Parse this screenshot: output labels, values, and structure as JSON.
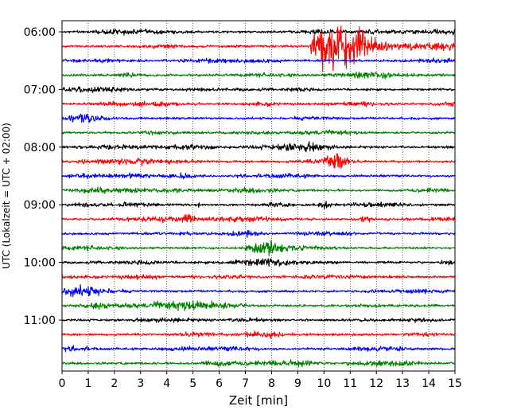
{
  "chart_data": {
    "type": "line",
    "subtype": "helicorder-seismogram",
    "title": "",
    "xlabel": "Zeit  [min]",
    "ylabel": "UTC (Lokalzeit = UTC + 02:00)",
    "xlim": [
      0,
      15
    ],
    "x_ticks": [
      0,
      1,
      2,
      3,
      4,
      5,
      6,
      7,
      8,
      9,
      10,
      11,
      12,
      13,
      14,
      15
    ],
    "y_tick_labels": [
      "06:00",
      "07:00",
      "08:00",
      "09:00",
      "10:00",
      "11:00"
    ],
    "trace_start_hour": "06:00",
    "trace_interval_min": 15,
    "trace_count": 24,
    "trace_colors": [
      "#000000",
      "#ff0000",
      "#0000ff",
      "#008000"
    ],
    "grid": {
      "x": "dotted-vertical",
      "y": false
    },
    "legend": "none",
    "events": [
      {
        "trace_start": "06:15",
        "x_start_min": 9.5,
        "x_end_min": 13.5,
        "amplitude": "large",
        "note": "clipped, peak near 10–11 min"
      },
      {
        "trace_start": "08:15",
        "x_start_min": 10.0,
        "x_end_min": 11.0,
        "amplitude": "medium"
      },
      {
        "trace_start": "09:00",
        "x_start_min": 5.2,
        "x_end_min": 5.3,
        "amplitude": "small"
      },
      {
        "trace_start": "09:00",
        "x_start_min": 9.8,
        "x_end_min": 10.3,
        "amplitude": "small"
      },
      {
        "trace_start": "09:15",
        "x_start_min": 4.5,
        "x_end_min": 5.2,
        "amplitude": "small"
      },
      {
        "trace_start": "09:45",
        "x_start_min": 7.0,
        "x_end_min": 9.0,
        "amplitude": "small"
      },
      {
        "trace_start": "10:45",
        "x_start_min": 3.5,
        "x_end_min": 7.5,
        "amplitude": "small"
      }
    ]
  }
}
